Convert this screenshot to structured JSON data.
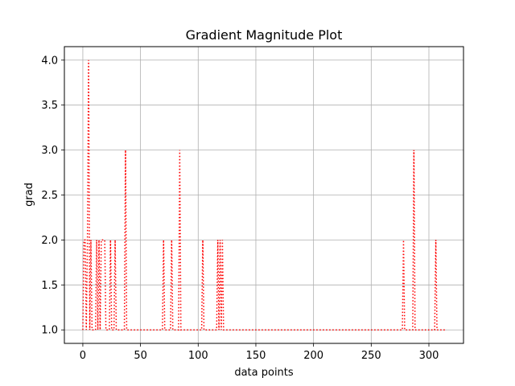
{
  "chart_data": {
    "type": "line",
    "title": "Gradient Magnitude Plot",
    "xlabel": "data points",
    "ylabel": "grad",
    "xlim": [
      -16,
      330
    ],
    "ylim": [
      0.85,
      4.15
    ],
    "x_ticks": [
      0,
      50,
      100,
      150,
      200,
      250,
      300
    ],
    "y_ticks": [
      1.0,
      1.5,
      2.0,
      2.5,
      3.0,
      3.5,
      4.0
    ],
    "grid": true,
    "series": [
      {
        "color": "#ff0000",
        "line_style": "dotted",
        "x_range": [
          0,
          315
        ],
        "baseline": 1,
        "spikes": [
          {
            "x": 1,
            "y": 2
          },
          {
            "x": 2,
            "y": 2
          },
          {
            "x": 4,
            "y": 2
          },
          {
            "x": 5,
            "y": 4
          },
          {
            "x": 7,
            "y": 2
          },
          {
            "x": 12,
            "y": 2
          },
          {
            "x": 14,
            "y": 2
          },
          {
            "x": 16,
            "y": 2
          },
          {
            "x": 17,
            "y": 2
          },
          {
            "x": 18,
            "y": 2
          },
          {
            "x": 19,
            "y": 2
          },
          {
            "x": 24,
            "y": 2
          },
          {
            "x": 28,
            "y": 2
          },
          {
            "x": 37,
            "y": 3
          },
          {
            "x": 70,
            "y": 2
          },
          {
            "x": 77,
            "y": 2
          },
          {
            "x": 84,
            "y": 3
          },
          {
            "x": 104,
            "y": 2
          },
          {
            "x": 117,
            "y": 2
          },
          {
            "x": 119,
            "y": 2
          },
          {
            "x": 121,
            "y": 2
          },
          {
            "x": 278,
            "y": 2
          },
          {
            "x": 287,
            "y": 3
          },
          {
            "x": 306,
            "y": 2
          }
        ]
      }
    ]
  }
}
